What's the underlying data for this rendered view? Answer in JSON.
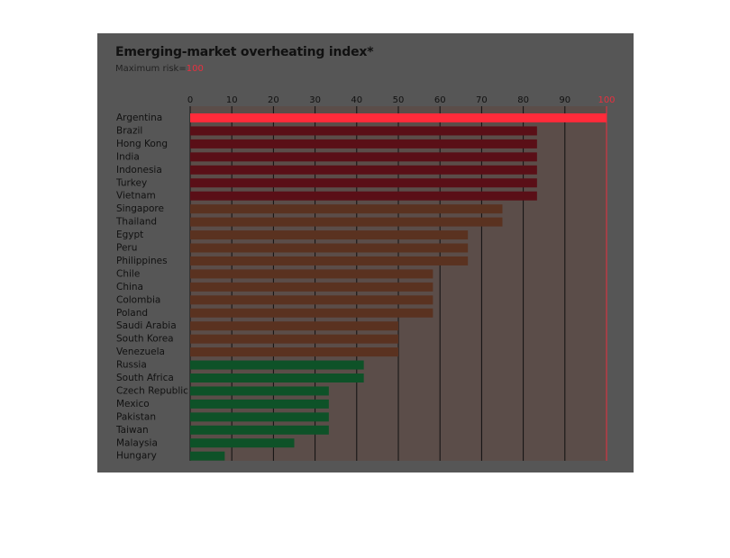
{
  "chart_data": {
    "type": "bar",
    "orientation": "horizontal",
    "title": "Emerging-market overheating index*",
    "subtitle_label": "Maximum risk=",
    "subtitle_value": "100",
    "xlim": [
      0,
      100
    ],
    "xticks": [
      "0",
      "10",
      "20",
      "30",
      "40",
      "50",
      "60",
      "70",
      "80",
      "90",
      "100"
    ],
    "grid": true,
    "categories": [
      "Argentina",
      "Brazil",
      "Hong Kong",
      "India",
      "Indonesia",
      "Turkey",
      "Vietnam",
      "Singapore",
      "Thailand",
      "Egypt",
      "Peru",
      "Philippines",
      "Chile",
      "China",
      "Colombia",
      "Poland",
      "Saudi Arabia",
      "South Korea",
      "Venezuela",
      "Russia",
      "South Africa",
      "Czech Republic",
      "Mexico",
      "Pakistan",
      "Taiwan",
      "Malaysia",
      "Hungary"
    ],
    "values": [
      100,
      83.3,
      83.3,
      83.3,
      83.3,
      83.3,
      83.3,
      75,
      75,
      66.7,
      66.7,
      66.7,
      58.3,
      58.3,
      58.3,
      58.3,
      50,
      50,
      50,
      41.7,
      41.7,
      33.3,
      33.3,
      33.3,
      33.3,
      25,
      8.3
    ],
    "colors": {
      "red": "#ff2b3a",
      "maroon": "#5a0f17",
      "brown": "#5a3220",
      "green": "#0e5228",
      "background": "#565656",
      "tint": "#5c4b46",
      "highlight": "#e8303f"
    },
    "color_bands": [
      "red",
      "maroon",
      "maroon",
      "maroon",
      "maroon",
      "maroon",
      "maroon",
      "brown",
      "brown",
      "brown",
      "brown",
      "brown",
      "brown",
      "brown",
      "brown",
      "brown",
      "brown",
      "brown",
      "brown",
      "green",
      "green",
      "green",
      "green",
      "green",
      "green",
      "green",
      "green"
    ]
  }
}
